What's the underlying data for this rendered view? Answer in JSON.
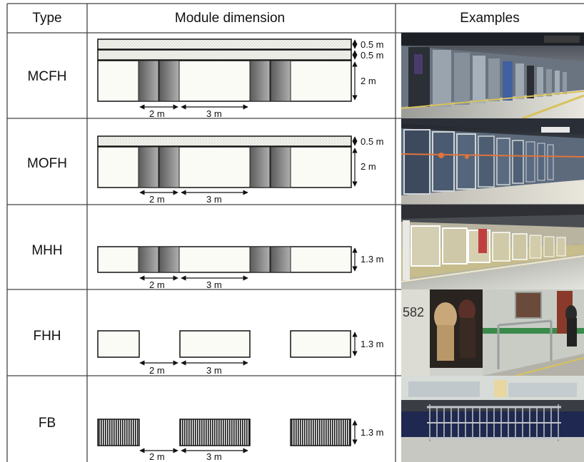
{
  "headers": {
    "type": "Type",
    "module": "Module dimension",
    "examples": "Examples"
  },
  "units": {
    "m05": "0.5 m",
    "m2": "2 m",
    "m13": "1.3 m",
    "m3": "3 m"
  },
  "rows": [
    {
      "type": "MCFH",
      "photo_icon": "full-height-screen-door-photo"
    },
    {
      "type": "MOFH",
      "photo_icon": "full-height-open-top-door-photo"
    },
    {
      "type": "MHH",
      "photo_icon": "half-height-door-photo"
    },
    {
      "type": "FHH",
      "photo_icon": "fixed-half-height-barrier-photo"
    },
    {
      "type": "FB",
      "photo_icon": "fence-barrier-photo"
    }
  ],
  "colors": {
    "panel": "#fbfbf6",
    "door_dark": "#555555",
    "door_light": "#b5b5b5",
    "grid": "#444444"
  }
}
